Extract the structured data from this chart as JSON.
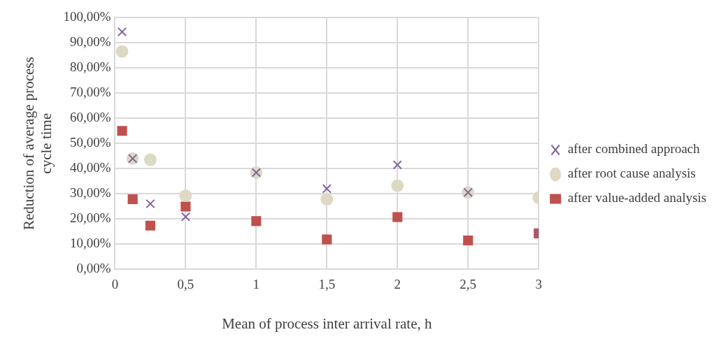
{
  "chart_data": {
    "type": "scatter",
    "xlabel": "Mean of process inter arrival rate, h",
    "ylabel": "Reduction of average process cycle time",
    "xlim": [
      0,
      3
    ],
    "xticks": [
      0,
      {
        "value": 0.5,
        "label": "0,5"
      },
      1,
      {
        "value": 1.5,
        "label": "1,5"
      },
      2,
      {
        "value": 2.5,
        "label": "2,5"
      },
      3
    ],
    "ylim": [
      0,
      100
    ],
    "yticks": [
      {
        "value": 0,
        "label": "0,00%"
      },
      {
        "value": 10,
        "label": "10,00%"
      },
      {
        "value": 20,
        "label": "20,00%"
      },
      {
        "value": 30,
        "label": "30,00%"
      },
      {
        "value": 40,
        "label": "40,00%"
      },
      {
        "value": 50,
        "label": "50,00%"
      },
      {
        "value": 60,
        "label": "60,00%"
      },
      {
        "value": 70,
        "label": "70,00%"
      },
      {
        "value": 80,
        "label": "80,00%"
      },
      {
        "value": 90,
        "label": "90,00%"
      },
      {
        "value": 100,
        "label": "100,00%"
      }
    ],
    "grid": true,
    "legend": "right",
    "x": [
      0.05,
      0.125,
      0.25,
      0.5,
      1,
      1.5,
      2,
      2.5,
      3
    ],
    "series": [
      {
        "name": "after value-added analysis",
        "color": "#c0504d",
        "marker": "square",
        "values": [
          55,
          27.8,
          17.3,
          24.9,
          19.1,
          11.8,
          20.7,
          11.4,
          14.2
        ]
      },
      {
        "name": "after root cause analysis",
        "color": "#ddd9c3",
        "marker": "circle",
        "values": [
          86.6,
          44.0,
          43.5,
          29.2,
          38.4,
          27.8,
          33.2,
          30.5,
          28.4
        ]
      },
      {
        "name": "after combined approach",
        "color": "#8064a2",
        "marker": "cross",
        "values": [
          94.4,
          44.0,
          26.0,
          20.8,
          38.4,
          32.0,
          41.5,
          30.5,
          14.2
        ]
      }
    ]
  }
}
